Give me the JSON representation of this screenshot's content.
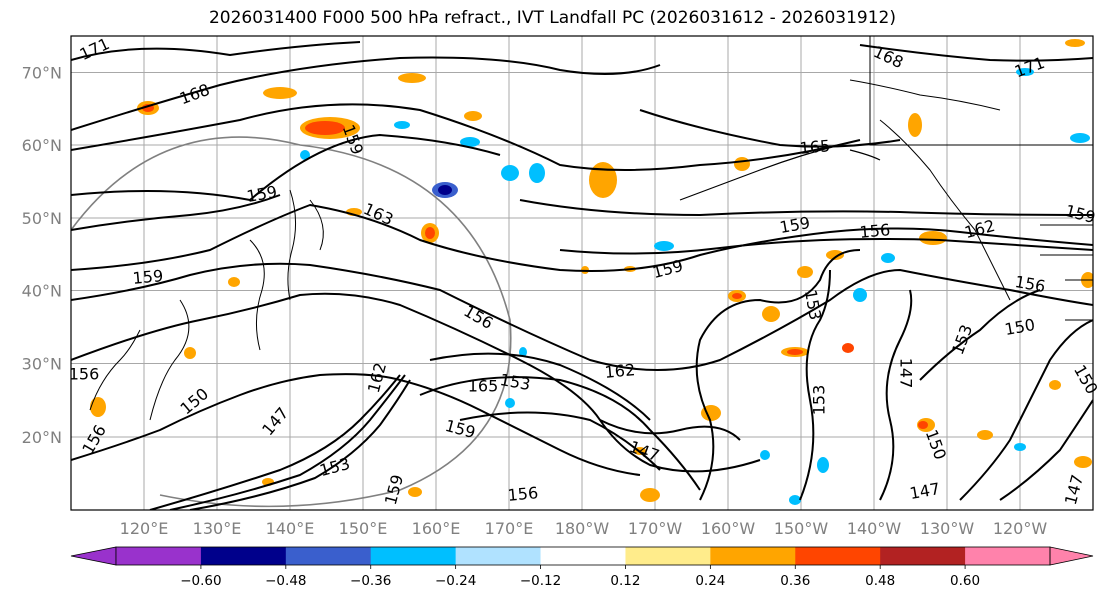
{
  "title": "2026031400 F000 500 hPa refract., IVT Landfall PC (2026031612 - 2026031912)",
  "lat_labels": [
    "70°N",
    "60°N",
    "50°N",
    "40°N",
    "30°N",
    "20°N"
  ],
  "lon_labels": [
    "120°E",
    "130°E",
    "140°E",
    "150°E",
    "160°E",
    "170°E",
    "180°W",
    "170°W",
    "160°W",
    "150°W",
    "140°W",
    "130°W",
    "120°W"
  ],
  "contour_labels": [
    "171",
    "168",
    "159",
    "159",
    "163",
    "159",
    "171",
    "168",
    "165",
    "159",
    "156",
    "159",
    "162",
    "159",
    "156",
    "153",
    "156",
    "150",
    "153",
    "162",
    "165",
    "153",
    "162",
    "147",
    "159",
    "150",
    "147",
    "150",
    "153",
    "156",
    "147",
    "153",
    "159",
    "156",
    "147",
    "147",
    "150",
    "156"
  ],
  "colorbar": {
    "ticks": [
      "−0.60",
      "−0.48",
      "−0.36",
      "−0.24",
      "−0.12",
      "0.12",
      "0.24",
      "0.36",
      "0.48",
      "0.60"
    ],
    "colors": [
      "#9932cc",
      "#00008b",
      "#3a5fcd",
      "#00bfff",
      "#b0e2ff",
      "#ffffff",
      "#ffec8b",
      "#ffa500",
      "#ff4500",
      "#b22222",
      "#ff82ab"
    ]
  }
}
